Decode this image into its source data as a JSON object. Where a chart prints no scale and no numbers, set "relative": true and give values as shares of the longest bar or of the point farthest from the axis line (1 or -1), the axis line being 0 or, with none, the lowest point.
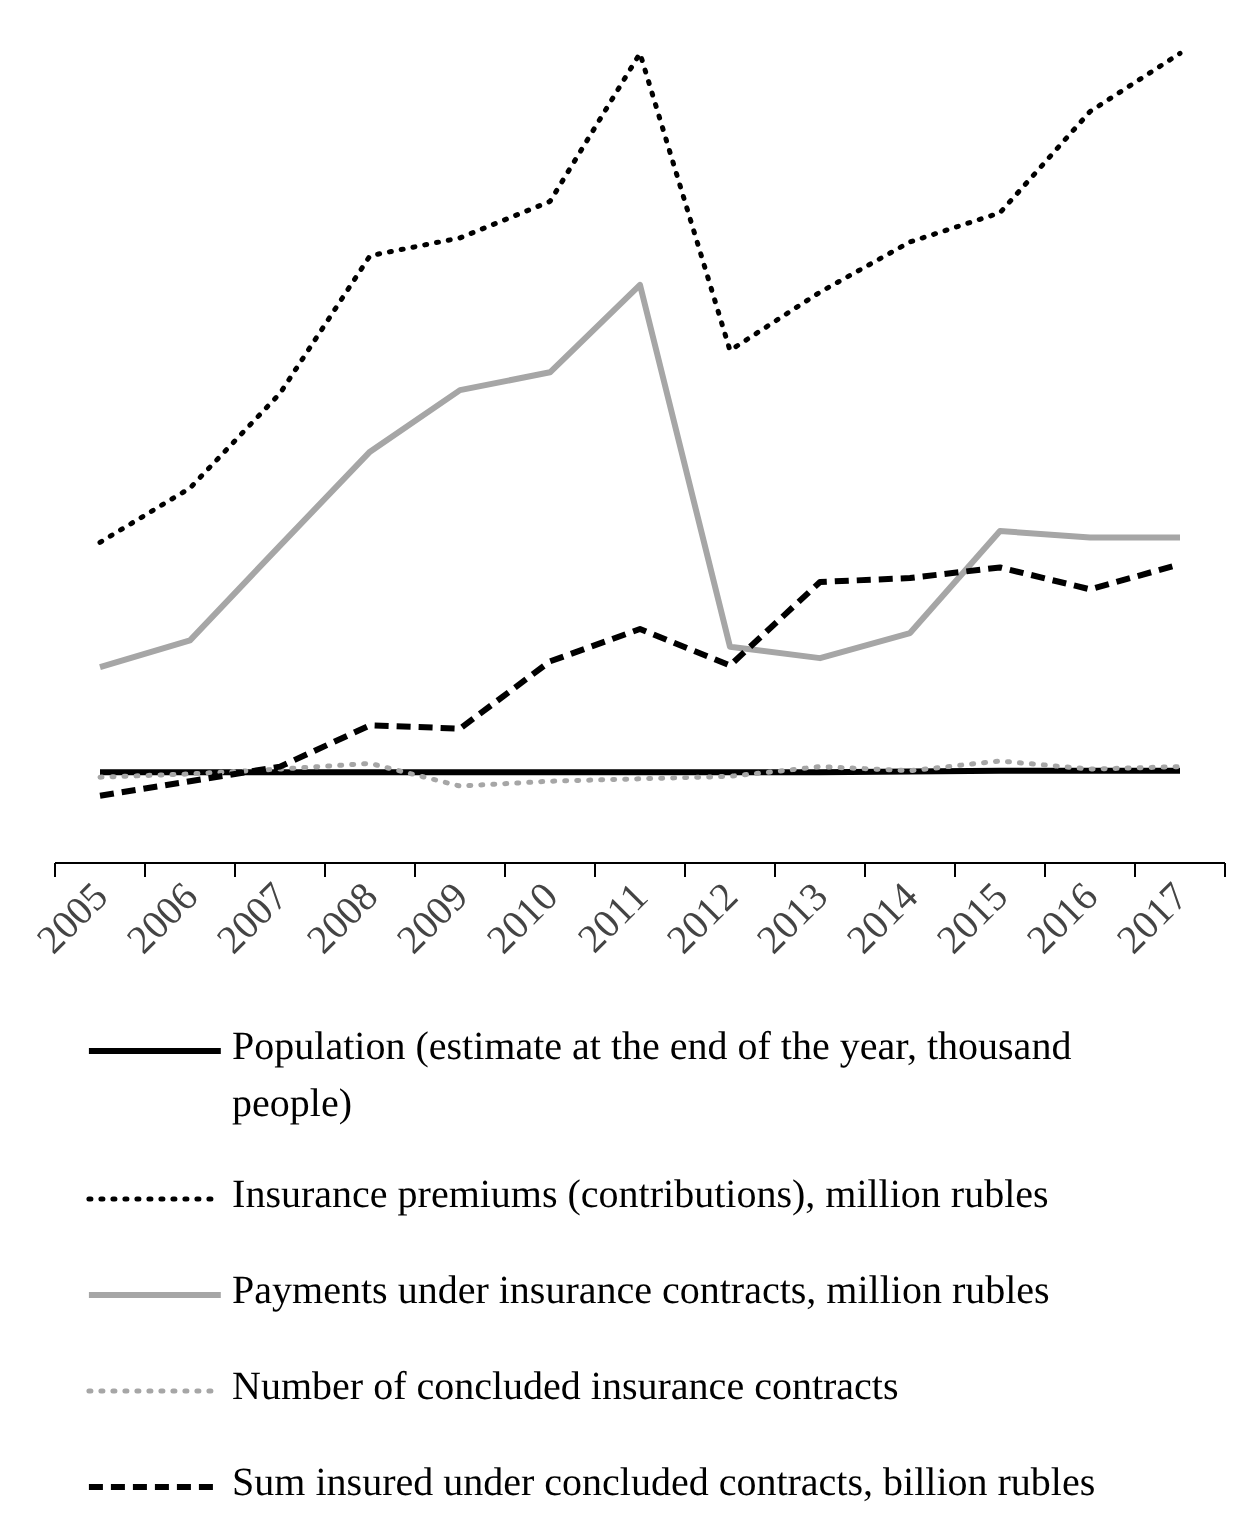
{
  "chart_data": {
    "type": "line",
    "relative": true,
    "categories": [
      "2005",
      "2006",
      "2007",
      "2008",
      "2009",
      "2010",
      "2011",
      "2012",
      "2013",
      "2014",
      "2015",
      "2016",
      "2017"
    ],
    "series": [
      {
        "name": "Population (estimate at the end of the year, thousand people)",
        "color": "#000000",
        "line_style": "solid",
        "values": [
          0.112,
          0.112,
          0.112,
          0.112,
          0.112,
          0.112,
          0.112,
          0.112,
          0.112,
          0.113,
          0.114,
          0.114,
          0.114
        ]
      },
      {
        "name": "Insurance premiums (contributions), million rubles",
        "color": "#000000",
        "line_style": "dotted",
        "values": [
          0.396,
          0.463,
          0.58,
          0.75,
          0.772,
          0.817,
          1.0,
          0.633,
          0.705,
          0.767,
          0.803,
          0.928,
          1.0
        ]
      },
      {
        "name": "Payments under insurance contracts, million rubles",
        "color": "#a6a6a6",
        "line_style": "solid",
        "values": [
          0.242,
          0.275,
          0.392,
          0.508,
          0.584,
          0.606,
          0.714,
          0.267,
          0.253,
          0.284,
          0.41,
          0.402,
          0.402
        ]
      },
      {
        "name": "Number of concluded insurance contracts",
        "color": "#a6a6a6",
        "line_style": "dotted",
        "values": [
          0.106,
          0.11,
          0.116,
          0.123,
          0.095,
          0.101,
          0.104,
          0.107,
          0.119,
          0.114,
          0.126,
          0.116,
          0.119
        ]
      },
      {
        "name": "Sum insured under concluded contracts, billion rubles",
        "color": "#000000",
        "line_style": "dashed",
        "values": [
          0.083,
          0.101,
          0.119,
          0.17,
          0.166,
          0.249,
          0.289,
          0.244,
          0.347,
          0.352,
          0.365,
          0.338,
          0.369
        ]
      }
    ],
    "legend": "bottom"
  }
}
